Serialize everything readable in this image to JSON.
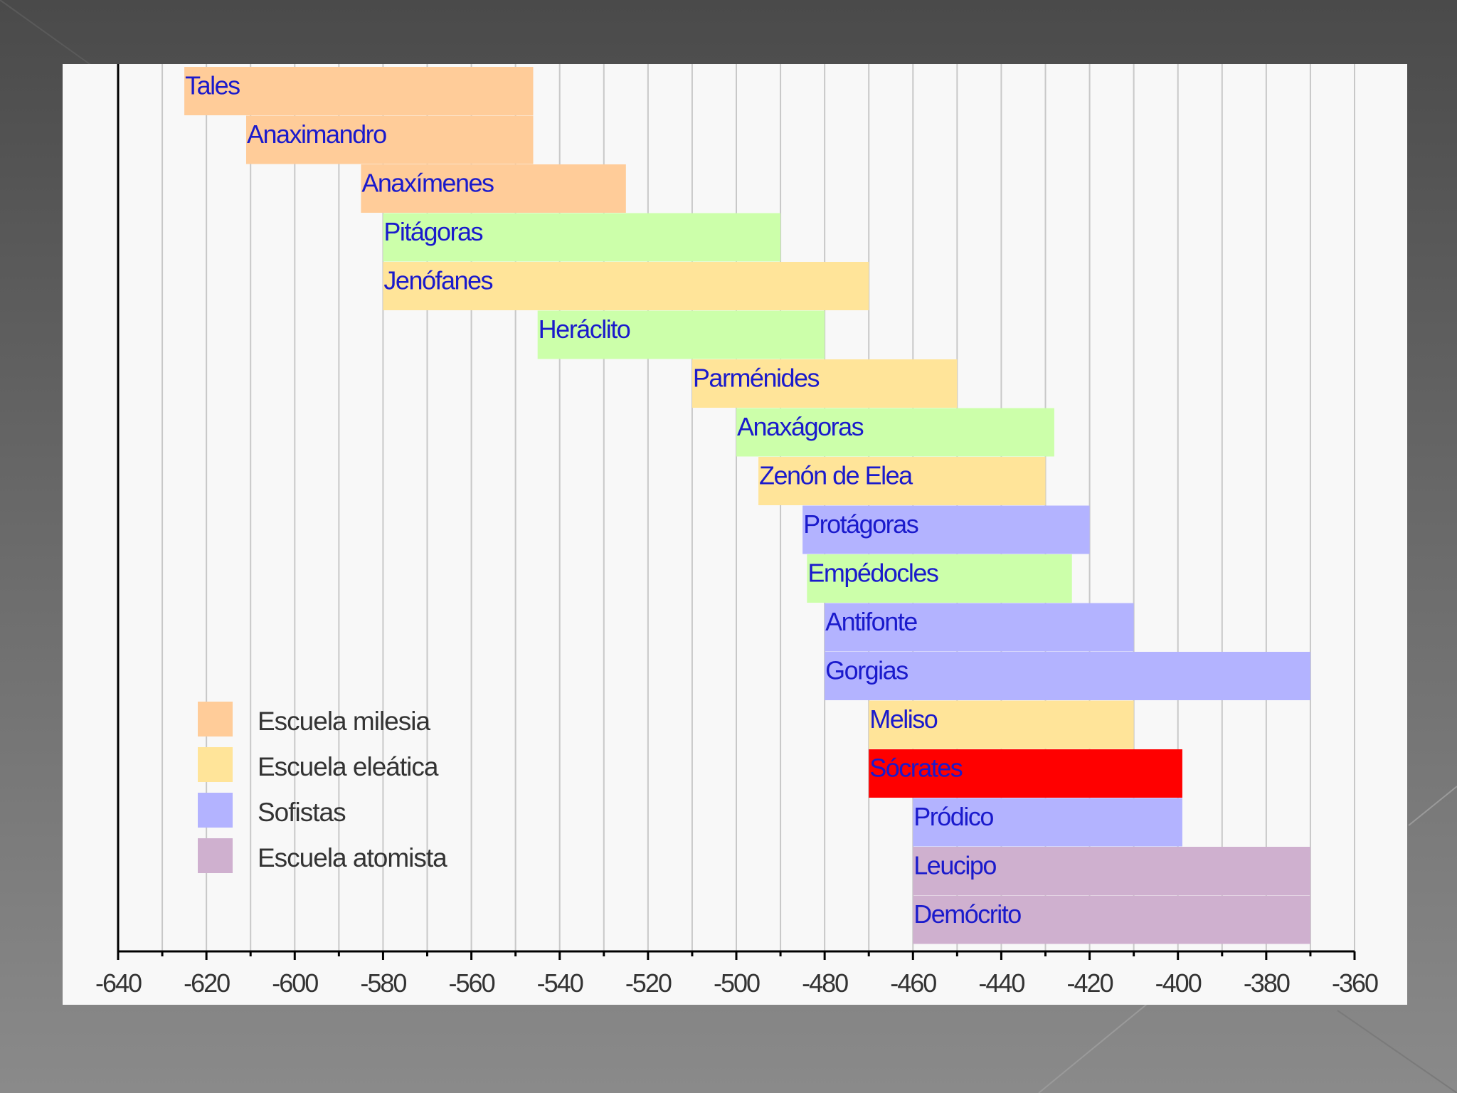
{
  "chart_data": {
    "type": "timeline",
    "xlim": [
      -640,
      -360
    ],
    "xtick_step": 20,
    "xticks": [
      -640,
      -620,
      -600,
      -580,
      -560,
      -540,
      -520,
      -500,
      -480,
      -460,
      -440,
      -420,
      -400,
      -380,
      -360
    ],
    "grid": true,
    "legend_position": "bottom-left",
    "colors": {
      "milesia": "#ffcc99",
      "eleatica": "#ffe499",
      "pitagorica": "#ccffaa",
      "sofistas": "#b3b3ff",
      "socrates": "#ff0000",
      "atomista": "#cfb0cf",
      "label": "#1a1acc",
      "axis": "#000000",
      "grid": "#c8c8c8"
    },
    "bars": [
      {
        "name": "Tales",
        "start": -625,
        "end": -546,
        "group": "milesia"
      },
      {
        "name": "Anaximandro",
        "start": -611,
        "end": -546,
        "group": "milesia"
      },
      {
        "name": "Anaxímenes",
        "start": -585,
        "end": -525,
        "group": "milesia"
      },
      {
        "name": "Pitágoras",
        "start": -580,
        "end": -490,
        "group": "pitagorica"
      },
      {
        "name": "Jenófanes",
        "start": -580,
        "end": -470,
        "group": "eleatica"
      },
      {
        "name": "Heráclito",
        "start": -545,
        "end": -480,
        "group": "pitagorica"
      },
      {
        "name": "Parménides",
        "start": -510,
        "end": -450,
        "group": "eleatica"
      },
      {
        "name": "Anaxágoras",
        "start": -500,
        "end": -428,
        "group": "pitagorica"
      },
      {
        "name": "Zenón de Elea",
        "start": -495,
        "end": -430,
        "group": "eleatica"
      },
      {
        "name": "Protágoras",
        "start": -485,
        "end": -420,
        "group": "sofistas"
      },
      {
        "name": "Empédocles",
        "start": -484,
        "end": -424,
        "group": "pitagorica"
      },
      {
        "name": "Antifonte",
        "start": -480,
        "end": -410,
        "group": "sofistas"
      },
      {
        "name": "Gorgias",
        "start": -480,
        "end": -370,
        "group": "sofistas"
      },
      {
        "name": "Meliso",
        "start": -470,
        "end": -410,
        "group": "eleatica"
      },
      {
        "name": "Sócrates",
        "start": -470,
        "end": -399,
        "group": "socrates"
      },
      {
        "name": "Pródico",
        "start": -460,
        "end": -399,
        "group": "sofistas"
      },
      {
        "name": "Leucipo",
        "start": -460,
        "end": -370,
        "group": "atomista"
      },
      {
        "name": "Demócrito",
        "start": -460,
        "end": -370,
        "group": "atomista"
      }
    ],
    "legend": [
      {
        "label": "Escuela milesia",
        "group": "milesia"
      },
      {
        "label": "Escuela eleática",
        "group": "eleatica"
      },
      {
        "label": "Sofistas",
        "group": "sofistas"
      },
      {
        "label": "Escuela atomista",
        "group": "atomista"
      }
    ]
  }
}
